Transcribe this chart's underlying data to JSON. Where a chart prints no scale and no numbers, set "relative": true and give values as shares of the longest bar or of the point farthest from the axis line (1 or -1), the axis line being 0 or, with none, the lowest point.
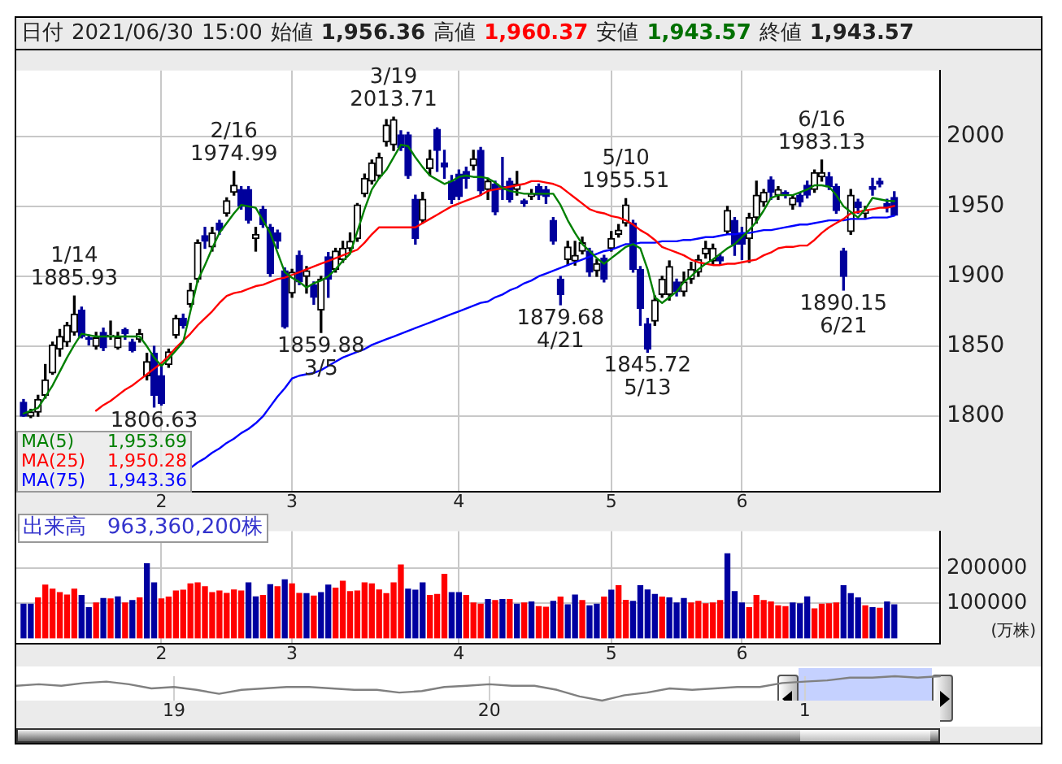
{
  "chart_data": [
    {
      "type": "candlestick",
      "title": "日付 2021/06/30 15:00 始値 1,956.36 高値 1,960.37 安値 1,943.57 終値 1,943.57",
      "colors": [
        "#00009c",
        "#000000",
        "#000000",
        "#000000",
        "#000000",
        "#000000",
        "#000000",
        "#000000",
        "#00009c",
        "#00009c",
        "#000000",
        "#00009c",
        "#000000",
        "#000000",
        "#00009c",
        "#00009c",
        "#000000",
        "#000000",
        "#00009c",
        "#00009c",
        "#000000",
        "#000000",
        "#00009c",
        "#000000",
        "#000000",
        "#00009c",
        "#000000",
        "#00009c",
        "#000000",
        "#000000",
        "#00009c",
        "#00009c",
        "#000000",
        "#00009c",
        "#00009c",
        "#00009c",
        "#00009c",
        "#000000",
        "#00009c",
        "#000000",
        "#00009c",
        "#000000",
        "#00009c",
        "#000000",
        "#000000",
        "#000000",
        "#000000",
        "#000000",
        "#000000",
        "#000000",
        "#000000",
        "#000000",
        "#00009c",
        "#00009c",
        "#00009c",
        "#000000",
        "#000000",
        "#00009c",
        "#00009c",
        "#00009c",
        "#00009c",
        "#00009c",
        "#000000",
        "#00009c",
        "#000000",
        "#00009c",
        "#00009c",
        "#00009c",
        "#000000",
        "#00009c",
        "#000000",
        "#00009c",
        "#00009c",
        "#00009c",
        "#00009c",
        "#000000",
        "#000000",
        "#000000",
        "#00009c",
        "#000000",
        "#00009c",
        "#000000",
        "#000000",
        "#000000",
        "#00009c",
        "#00009c",
        "#00009c",
        "#000000",
        "#000000",
        "#000000",
        "#00009c",
        "#000000",
        "#000000",
        "#000000",
        "#000000",
        "#000000",
        "#00009c",
        "#000000",
        "#00009c",
        "#00009c",
        "#000000",
        "#000000",
        "#000000",
        "#00009c",
        "#000000",
        "#00009c",
        "#000000",
        "#00009c",
        "#00009c",
        "#000000",
        "#000000",
        "#00009c",
        "#00009c",
        "#00009c",
        "#000000",
        "#00009c",
        "#000000",
        "#00009c",
        "#00009c",
        "#00009c",
        "#00009c"
      ],
      "categories": [
        null,
        null,
        null,
        null,
        null,
        null,
        null,
        null,
        null,
        null,
        null,
        null,
        null,
        null,
        null,
        null,
        null,
        null,
        null,
        "2",
        null,
        null,
        null,
        null,
        null,
        null,
        null,
        null,
        null,
        null,
        null,
        null,
        null,
        null,
        null,
        null,
        null,
        "3",
        null,
        null,
        null,
        null,
        null,
        null,
        null,
        null,
        null,
        null,
        null,
        null,
        null,
        null,
        null,
        null,
        null,
        null,
        null,
        null,
        null,
        null,
        "4",
        null,
        null,
        null,
        null,
        null,
        null,
        null,
        null,
        null,
        null,
        null,
        null,
        null,
        null,
        null,
        null,
        null,
        null,
        null,
        null,
        "5",
        null,
        null,
        null,
        null,
        null,
        null,
        null,
        null,
        null,
        null,
        null,
        null,
        null,
        null,
        null,
        null,
        null,
        "6",
        null,
        null,
        null,
        null,
        null,
        null,
        null,
        null,
        null,
        null,
        null,
        null,
        null,
        null,
        null,
        null,
        null,
        null,
        null,
        null,
        null
      ],
      "ohlc": [
        [
          1810,
          1812,
          1800,
          1800
        ],
        [
          1800,
          1805,
          1799,
          1803
        ],
        [
          1803,
          1815,
          1800,
          1812
        ],
        [
          1815,
          1837,
          1813,
          1826
        ],
        [
          1831,
          1853,
          1830,
          1851
        ],
        [
          1848,
          1862,
          1843,
          1857
        ],
        [
          1853,
          1867,
          1850,
          1865
        ],
        [
          1860,
          1885.93,
          1858,
          1873
        ],
        [
          1876,
          1878,
          1856,
          1857
        ],
        [
          1856,
          1858,
          1851,
          1855
        ],
        [
          1850,
          1860,
          1848,
          1856
        ],
        [
          1860,
          1863,
          1847,
          1849
        ],
        [
          1857,
          1868,
          1855,
          1858
        ],
        [
          1849,
          1860,
          1848,
          1856
        ],
        [
          1862,
          1863,
          1855,
          1859
        ],
        [
          1853,
          1855,
          1846,
          1847
        ],
        [
          1855,
          1862,
          1853,
          1859
        ],
        [
          1829,
          1845,
          1826,
          1839
        ],
        [
          1845,
          1850,
          1806.63,
          1815
        ],
        [
          1829,
          1836,
          1808,
          1809
        ],
        [
          1837,
          1848,
          1835,
          1846
        ],
        [
          1858,
          1872,
          1856,
          1870
        ],
        [
          1870,
          1873,
          1863,
          1865
        ],
        [
          1880,
          1895,
          1878,
          1890
        ],
        [
          1898,
          1926,
          1896,
          1924
        ],
        [
          1929,
          1935,
          1920,
          1925
        ],
        [
          1921,
          1935,
          1918,
          1931
        ],
        [
          1938,
          1940,
          1930,
          1933
        ],
        [
          1945,
          1956,
          1943,
          1954
        ],
        [
          1960,
          1974.99,
          1958,
          1965
        ],
        [
          1962,
          1964,
          1948,
          1950
        ],
        [
          1962,
          1964,
          1938,
          1940
        ],
        [
          1927,
          1935,
          1918,
          1930
        ],
        [
          1948,
          1950,
          1935,
          1937
        ],
        [
          1935,
          1937,
          1900,
          1902
        ],
        [
          1931,
          1933,
          1920,
          1925
        ],
        [
          1904,
          1906,
          1863,
          1864
        ],
        [
          1888,
          1905,
          1885,
          1903
        ],
        [
          1915,
          1918,
          1894,
          1896
        ],
        [
          1900,
          1907,
          1888,
          1904
        ],
        [
          1894,
          1896,
          1880,
          1885
        ],
        [
          1876,
          1900,
          1859.88,
          1898
        ],
        [
          1914,
          1917,
          1885,
          1898
        ],
        [
          1905,
          1920,
          1903,
          1918
        ],
        [
          1912,
          1925,
          1910,
          1920
        ],
        [
          1920,
          1931,
          1918,
          1925
        ],
        [
          1927,
          1952,
          1925,
          1951
        ],
        [
          1959,
          1973,
          1957,
          1970
        ],
        [
          1968,
          1983,
          1966,
          1981
        ],
        [
          1972,
          1988,
          1970,
          1985
        ],
        [
          1996,
          2012,
          1993,
          2008
        ],
        [
          1994,
          2013.71,
          1990,
          2012
        ],
        [
          2001,
          2004,
          1990,
          1992
        ],
        [
          2001,
          2003,
          1970,
          1972
        ],
        [
          1955,
          1958,
          1923,
          1927
        ],
        [
          1940,
          1960,
          1938,
          1955
        ],
        [
          1977,
          1990,
          1972,
          1984
        ],
        [
          2005,
          2006,
          1975,
          1990
        ],
        [
          1981,
          1990,
          1970,
          1978
        ],
        [
          1968,
          1972,
          1952,
          1955
        ],
        [
          1973,
          1976,
          1955,
          1957
        ],
        [
          1975,
          1978,
          1963,
          1970
        ],
        [
          1979,
          1990,
          1976,
          1984
        ],
        [
          1990,
          1992,
          1958,
          1961
        ],
        [
          1962,
          1970,
          1955,
          1968
        ],
        [
          1966,
          1968,
          1944,
          1946
        ],
        [
          1964,
          1985,
          1955,
          1962
        ],
        [
          1968,
          1970,
          1953,
          1955
        ],
        [
          1962,
          1975,
          1958,
          1966
        ],
        [
          1954,
          1955,
          1950,
          1952
        ],
        [
          1957,
          1962,
          1955,
          1959
        ],
        [
          1964,
          1966,
          1955,
          1958
        ],
        [
          1962,
          1964,
          1952,
          1957
        ],
        [
          1940,
          1942,
          1923,
          1925
        ],
        [
          1898,
          1900,
          1879.68,
          1887
        ],
        [
          1912,
          1925,
          1908,
          1921
        ],
        [
          1911,
          1925,
          1908,
          1915
        ],
        [
          1918,
          1928,
          1916,
          1924
        ],
        [
          1918,
          1920,
          1900,
          1903
        ],
        [
          1904,
          1912,
          1900,
          1909
        ],
        [
          1913,
          1915,
          1896,
          1898
        ],
        [
          1920,
          1932,
          1918,
          1927
        ],
        [
          1930,
          1937,
          1928,
          1933
        ],
        [
          1938,
          1955.51,
          1936,
          1951
        ],
        [
          1938,
          1940,
          1903,
          1905
        ],
        [
          1905,
          1907,
          1865,
          1877
        ],
        [
          1866,
          1870,
          1845.72,
          1848
        ],
        [
          1868,
          1886,
          1865,
          1883
        ],
        [
          1887,
          1900,
          1885,
          1898
        ],
        [
          1887,
          1911,
          1883,
          1907
        ],
        [
          1896,
          1898,
          1886,
          1889
        ],
        [
          1889,
          1903,
          1886,
          1896
        ],
        [
          1898,
          1910,
          1895,
          1905
        ],
        [
          1903,
          1915,
          1900,
          1912
        ],
        [
          1916,
          1925,
          1913,
          1920
        ],
        [
          1911,
          1923,
          1908,
          1920
        ],
        [
          1914,
          1916,
          1908,
          1911
        ],
        [
          1932,
          1950,
          1930,
          1947
        ],
        [
          1940,
          1942,
          1915,
          1923
        ],
        [
          1931,
          1935,
          1912,
          1923
        ],
        [
          1927,
          1945,
          1910,
          1942
        ],
        [
          1942,
          1968,
          1938,
          1958
        ],
        [
          1953,
          1962,
          1950,
          1960
        ],
        [
          1969,
          1971,
          1955,
          1960
        ],
        [
          1958,
          1964,
          1955,
          1962
        ],
        [
          1960,
          1961,
          1956,
          1958
        ],
        [
          1951,
          1958,
          1948,
          1956
        ],
        [
          1958,
          1960,
          1950,
          1953
        ],
        [
          1965,
          1968,
          1956,
          1958
        ],
        [
          1962,
          1976,
          1960,
          1974
        ],
        [
          1971,
          1983.13,
          1968,
          1974
        ],
        [
          1971,
          1974,
          1962,
          1964
        ],
        [
          1964,
          1966,
          1945,
          1947
        ],
        [
          1918,
          1920,
          1890.15,
          1900
        ],
        [
          1932,
          1962,
          1930,
          1958
        ],
        [
          1953,
          1955,
          1945,
          1949
        ],
        [
          1945,
          1950,
          1942,
          1947
        ],
        [
          1964,
          1970,
          1958,
          1962
        ],
        [
          1968,
          1970,
          1964,
          1966
        ],
        [
          1952,
          1955,
          1946,
          1949
        ],
        [
          1956.36,
          1960.37,
          1943.57,
          1943.57
        ]
      ],
      "series": [
        {
          "name": "MA(5)",
          "type": "line",
          "color": "#008000",
          "values": [
            1802,
            1804,
            1806,
            1814,
            1822,
            1832,
            1842,
            1851,
            1859,
            1858,
            1857,
            1857,
            1857,
            1857,
            1857,
            1857,
            1857,
            1850,
            1842,
            1836,
            1841,
            1847,
            1853,
            1875,
            1897,
            1908,
            1920,
            1931,
            1938,
            1945,
            1951,
            1950,
            1949,
            1940,
            1931,
            1917,
            1903,
            1899,
            1896,
            1892,
            1895,
            1897,
            1900,
            1905,
            1911,
            1916,
            1932,
            1948,
            1962,
            1970,
            1976,
            1985,
            1994,
            1993,
            1985,
            1978,
            1972,
            1969,
            1966,
            1968,
            1971,
            1972,
            1971,
            1971,
            1970,
            1967,
            1963,
            1961,
            1960,
            1959,
            1959,
            1959,
            1959,
            1959,
            1951,
            1940,
            1931,
            1923,
            1918,
            1913,
            1909,
            1913,
            1917,
            1921,
            1923,
            1920,
            1905,
            1885,
            1881,
            1885,
            1889,
            1896,
            1900,
            1905,
            1909,
            1912,
            1916,
            1920,
            1923,
            1928,
            1933,
            1939,
            1947,
            1956,
            1958,
            1958,
            1958,
            1960,
            1962,
            1965,
            1965,
            1964,
            1958,
            1950,
            1946,
            1942,
            1948,
            1956,
            1955,
            1954,
            1953.69
          ]
        },
        {
          "name": "MA(25)",
          "type": "line",
          "color": "#ff0000",
          "values": [
            null,
            null,
            null,
            null,
            null,
            null,
            null,
            null,
            null,
            null,
            1804,
            1808,
            1811,
            1815,
            1819,
            1822,
            1826,
            1830,
            1834,
            1838,
            1843,
            1849,
            1854,
            1859,
            1865,
            1870,
            1875,
            1881,
            1886,
            1888,
            1889,
            1891,
            1893,
            1894,
            1896,
            1898,
            1899,
            1901,
            1903,
            1905,
            1907,
            1909,
            1911,
            1913,
            1915,
            1917,
            1919,
            1924,
            1930,
            1935,
            1935,
            1935,
            1935,
            1935,
            1935,
            1938,
            1941,
            1944,
            1947,
            1950,
            1952,
            1954,
            1956,
            1958,
            1961,
            1962,
            1963,
            1964,
            1965,
            1966,
            1968,
            1968,
            1967,
            1966,
            1964,
            1960,
            1956,
            1952,
            1948,
            1946,
            1945,
            1943,
            1942,
            1940,
            1937,
            1933,
            1930,
            1926,
            1921,
            1919,
            1917,
            1915,
            1912,
            1910,
            1909,
            1908,
            1908,
            1909,
            1909,
            1910,
            1911,
            1912,
            1915,
            1917,
            1920,
            1921,
            1921,
            1922,
            1922,
            1926,
            1931,
            1935,
            1938,
            1941,
            1945,
            1946,
            1947,
            1948,
            1949,
            1949,
            1950.28
          ]
        },
        {
          "name": "MA(75)",
          "type": "line",
          "color": "#0000ff",
          "values": [
            null,
            null,
            null,
            null,
            null,
            null,
            null,
            null,
            null,
            null,
            null,
            null,
            null,
            null,
            null,
            null,
            null,
            null,
            null,
            null,
            null,
            null,
            null,
            1763,
            1767,
            1770,
            1774,
            1777,
            1781,
            1784,
            1788,
            1791,
            1795,
            1800,
            1807,
            1814,
            1820,
            1827,
            1829,
            1830,
            1831,
            1833,
            1836,
            1839,
            1842,
            1844,
            1846,
            1848,
            1851,
            1853,
            1855,
            1857,
            1859,
            1861,
            1863,
            1865,
            1867,
            1869,
            1871,
            1873,
            1875,
            1877,
            1879,
            1881,
            1882,
            1885,
            1887,
            1890,
            1892,
            1895,
            1897,
            1900,
            1902,
            1904,
            1906,
            1908,
            1910,
            1912,
            1914,
            1916,
            1918,
            1919,
            1921,
            1923,
            1923,
            1924,
            1924,
            1924,
            1925,
            1925,
            1925,
            1926,
            1926,
            1927,
            1928,
            1928,
            1929,
            1930,
            1930,
            1931,
            1931,
            1932,
            1933,
            1933,
            1934,
            1935,
            1936,
            1937,
            1937,
            1938,
            1939,
            1940,
            1940,
            1940,
            1941,
            1941,
            1941,
            1942,
            1942,
            1942,
            1943.36
          ]
        }
      ],
      "ylim": [
        1746,
        2047
      ],
      "yticks": [
        1800,
        1850,
        1900,
        1950,
        2000
      ],
      "grid": true,
      "legend": "bottom left",
      "marker": "none",
      "annotations": [
        "1,953.69",
        "1,950.28",
        "1,943.36",
        {
          "text": "1/14\n1885.93",
          "y": 1885.93
        },
        {
          "text": "1806.63",
          "y": 1806.63
        },
        {
          "text": "2/16\n1974.99",
          "y": 1974.99
        },
        {
          "text": "1859.88\n3/5",
          "y": 1859.88
        },
        {
          "text": "3/19\n2013.71",
          "y": 2013.71
        },
        {
          "text": "1879.68\n4/21",
          "y": 1879.68
        },
        {
          "text": "5/10\n1955.51",
          "y": 1955.51
        },
        {
          "text": "1845.72\n5/13",
          "y": 1845.72
        },
        {
          "text": "6/16\n1983.13",
          "y": 1983.13
        },
        {
          "text": "1890.15\n6/21",
          "y": 1890.15
        }
      ]
    },
    {
      "type": "bar",
      "title": "出来高　963,360,200株",
      "ylabel": "(万株)",
      "categories": [
        null,
        null,
        null,
        null,
        null,
        null,
        null,
        null,
        null,
        null,
        null,
        null,
        null,
        null,
        null,
        null,
        null,
        null,
        null,
        "2",
        null,
        null,
        null,
        null,
        null,
        null,
        null,
        null,
        null,
        null,
        null,
        null,
        null,
        null,
        null,
        null,
        null,
        "3",
        null,
        null,
        null,
        null,
        null,
        null,
        null,
        null,
        null,
        null,
        null,
        null,
        null,
        null,
        null,
        null,
        null,
        null,
        null,
        null,
        null,
        null,
        "4",
        null,
        null,
        null,
        null,
        null,
        null,
        null,
        null,
        null,
        null,
        null,
        null,
        null,
        null,
        null,
        null,
        null,
        null,
        null,
        null,
        "5",
        null,
        null,
        null,
        null,
        null,
        null,
        null,
        null,
        null,
        null,
        null,
        null,
        null,
        null,
        null,
        null,
        null,
        "6",
        null,
        null,
        null,
        null,
        null,
        null,
        null,
        null,
        null,
        null,
        null,
        null,
        null,
        null,
        null,
        null,
        null,
        null,
        null,
        null,
        null
      ],
      "values": [
        97000,
        97000,
        115000,
        152000,
        140000,
        130000,
        123000,
        140000,
        122000,
        87000,
        100000,
        113000,
        112000,
        118000,
        100000,
        107000,
        115000,
        213000,
        158000,
        112000,
        117000,
        135000,
        137000,
        155000,
        158000,
        147000,
        130000,
        135000,
        128000,
        138000,
        135000,
        158000,
        118000,
        122000,
        153000,
        147000,
        167000,
        155000,
        128000,
        127000,
        120000,
        130000,
        152000,
        143000,
        163000,
        133000,
        135000,
        158000,
        155000,
        138000,
        127000,
        158000,
        210000,
        140000,
        137000,
        158000,
        122000,
        125000,
        183000,
        130000,
        130000,
        122000,
        100000,
        97000,
        110000,
        107000,
        110000,
        110000,
        97000,
        100000,
        103000,
        90000,
        88000,
        105000,
        117000,
        95000,
        123000,
        107000,
        92000,
        97000,
        117000,
        137000,
        150000,
        108000,
        105000,
        150000,
        138000,
        125000,
        117000,
        115000,
        100000,
        113000,
        100000,
        105000,
        98000,
        100000,
        107000,
        242000,
        133000,
        100000,
        87000,
        122000,
        107000,
        103000,
        92000,
        90000,
        100000,
        98000,
        118000,
        83000,
        97000,
        98000,
        100000,
        150000,
        127000,
        115000,
        92000,
        87000,
        85000,
        103000,
        95000
      ],
      "colors": [
        "#0000a0",
        "#0000a0",
        "#ff0000",
        "#ff0000",
        "#ff0000",
        "#ff0000",
        "#ff0000",
        "#ff0000",
        "#0000a0",
        "#0000a0",
        "#ff0000",
        "#0000a0",
        "#ff0000",
        "#0000a0",
        "#ff0000",
        "#0000a0",
        "#ff0000",
        "#0000a0",
        "#0000a0",
        "#ff0000",
        "#ff0000",
        "#ff0000",
        "#ff0000",
        "#ff0000",
        "#ff0000",
        "#ff0000",
        "#ff0000",
        "#ff0000",
        "#ff0000",
        "#ff0000",
        "#ff0000",
        "#0000a0",
        "#0000a0",
        "#ff0000",
        "#0000a0",
        "#ff0000",
        "#0000a0",
        "#ff0000",
        "#ff0000",
        "#0000a0",
        "#ff0000",
        "#0000a0",
        "#0000a0",
        "#ff0000",
        "#ff0000",
        "#ff0000",
        "#ff0000",
        "#ff0000",
        "#ff0000",
        "#ff0000",
        "#ff0000",
        "#ff0000",
        "#ff0000",
        "#0000a0",
        "#0000a0",
        "#0000a0",
        "#ff0000",
        "#ff0000",
        "#ff0000",
        "#0000a0",
        "#0000a0",
        "#ff0000",
        "#ff0000",
        "#ff0000",
        "#0000a0",
        "#ff0000",
        "#0000a0",
        "#ff0000",
        "#0000a0",
        "#ff0000",
        "#0000a0",
        "#ff0000",
        "#ff0000",
        "#0000a0",
        "#ff0000",
        "#0000a0",
        "#0000a0",
        "#ff0000",
        "#0000a0",
        "#0000a0",
        "#ff0000",
        "#0000a0",
        "#ff0000",
        "#ff0000",
        "#0000a0",
        "#0000a0",
        "#0000a0",
        "#0000a0",
        "#ff0000",
        "#0000a0",
        "#0000a0",
        "#0000a0",
        "#ff0000",
        "#ff0000",
        "#ff0000",
        "#ff0000",
        "#ff0000",
        "#0000a0",
        "#0000a0",
        "#0000a0",
        "#ff0000",
        "#ff0000",
        "#ff0000",
        "#ff0000",
        "#ff0000",
        "#ff0000",
        "#0000a0",
        "#0000a0",
        "#0000a0",
        "#ff0000",
        "#ff0000",
        "#ff0000",
        "#ff0000",
        "#0000a0",
        "#0000a0",
        "#0000a0",
        "#ff0000",
        "#0000a0",
        "#ff0000",
        "#0000a0",
        "#0000a0"
      ],
      "ylim": [
        -17000,
        307000
      ],
      "yticks": [
        100000,
        200000
      ],
      "grid": true
    },
    {
      "type": "line",
      "relative": true,
      "color": "#808080",
      "grid": "x",
      "marker": "none",
      "categories": [
        null,
        null,
        null,
        null,
        null,
        null,
        null,
        "19",
        null,
        null,
        null,
        null,
        null,
        null,
        null,
        null,
        null,
        null,
        null,
        null,
        null,
        "20",
        null,
        null,
        null,
        null,
        null,
        null,
        null,
        null,
        null,
        null,
        null,
        null,
        null,
        "1",
        null,
        null,
        null,
        null,
        null,
        null
      ],
      "values": [
        0.61,
        0.67,
        0.61,
        0.72,
        0.78,
        0.67,
        0.5,
        0.56,
        0.44,
        0.28,
        0.44,
        0.5,
        0.56,
        0.56,
        0.5,
        0.44,
        0.44,
        0.33,
        0.39,
        0.56,
        0.61,
        0.67,
        0.61,
        0.61,
        0.44,
        0.17,
        0,
        0.22,
        0.33,
        0.5,
        0.44,
        0.5,
        0.56,
        0.56,
        0.72,
        0.78,
        0.83,
        0.94,
        0.94,
        1,
        0.94,
        1
      ]
    }
  ]
}
